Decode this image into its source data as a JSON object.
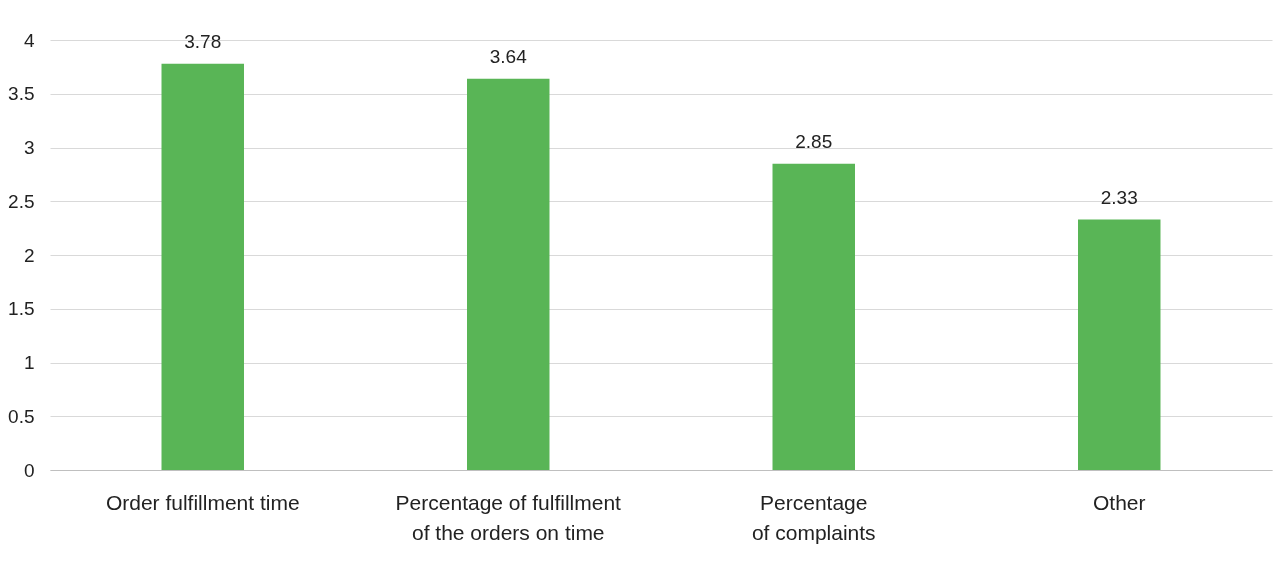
{
  "chart_data": {
    "type": "bar",
    "categories": [
      "Order fulfillment time",
      "Percentage of fulfillment\nof the orders on time",
      "Percentage\nof complaints",
      "Other"
    ],
    "values": [
      3.78,
      3.64,
      2.85,
      2.33
    ],
    "color": "#59b556",
    "ylim": [
      0,
      4
    ],
    "yticks": [
      0,
      0.5,
      1,
      1.5,
      2,
      2.5,
      3,
      3.5,
      4
    ],
    "grid": "y",
    "data_labels": true
  }
}
